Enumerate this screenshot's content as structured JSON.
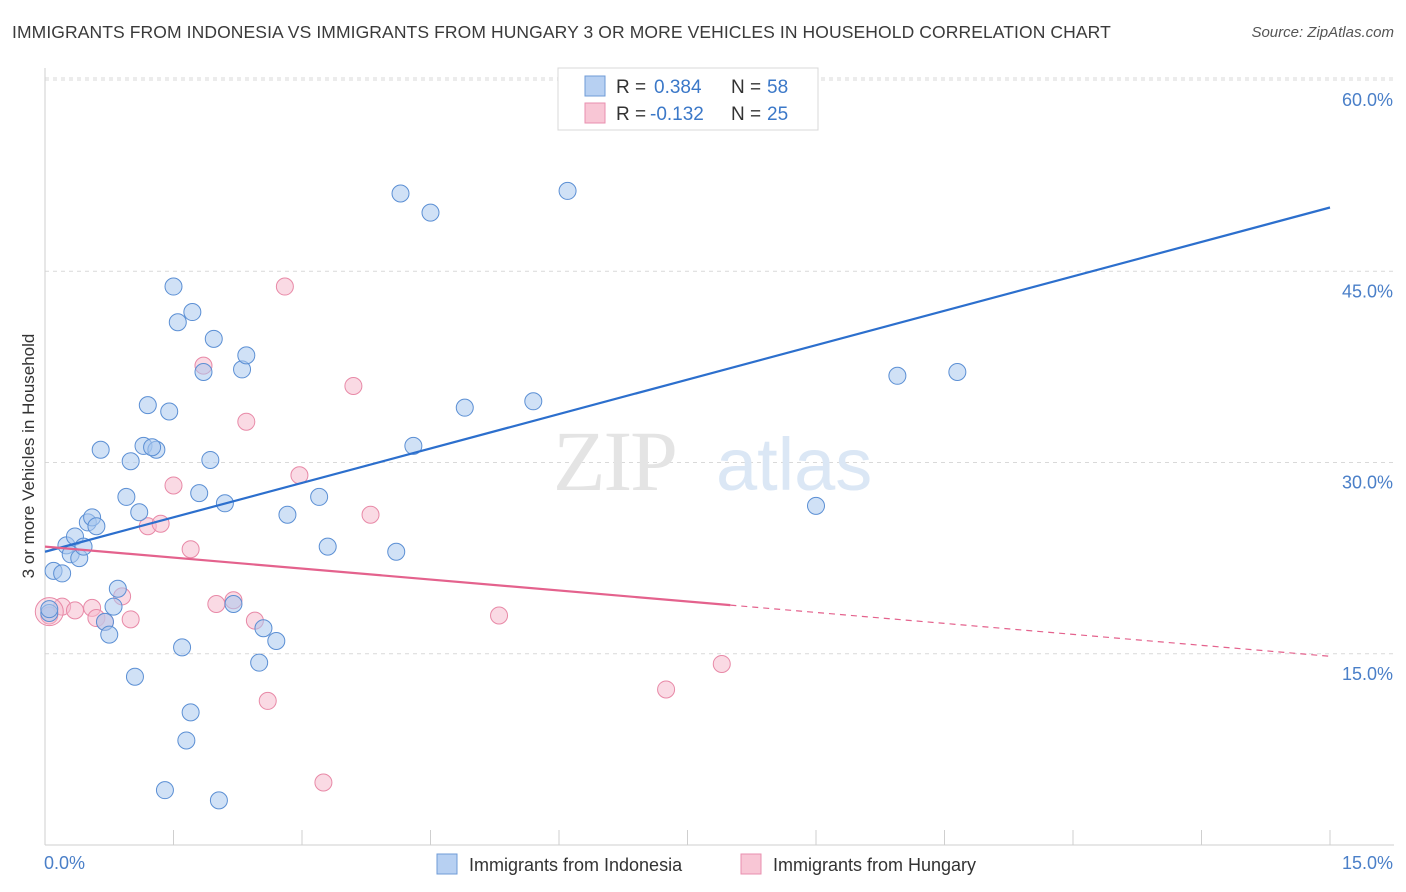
{
  "title": "IMMIGRANTS FROM INDONESIA VS IMMIGRANTS FROM HUNGARY 3 OR MORE VEHICLES IN HOUSEHOLD CORRELATION CHART",
  "source": "Source: ZipAtlas.com",
  "watermark": {
    "zip": "ZIP",
    "atlas": "atlas"
  },
  "legend": {
    "r_label": "R =",
    "n_label": "N =",
    "rows": [
      {
        "r": "0.384",
        "n": "58"
      },
      {
        "r": "-0.132",
        "n": "25"
      }
    ]
  },
  "colors": {
    "blue_fill": "#a9c8ef",
    "blue_stroke": "#5b8fd4",
    "blue_line": "#2c6fcd",
    "pink_fill": "#f6bccd",
    "pink_stroke": "#e889a7",
    "pink_line": "#e4628d",
    "grid": "#d9d9d9",
    "axis_text": "#4a7fc8"
  },
  "chart_data": {
    "type": "scatter",
    "title": "IMMIGRANTS FROM INDONESIA VS IMMIGRANTS FROM HUNGARY 3 OR MORE VEHICLES IN HOUSEHOLD CORRELATION CHART",
    "xlabel": "",
    "ylabel": "3 or more Vehicles in Household",
    "xlim": [
      0,
      15
    ],
    "ylim": [
      0,
      62
    ],
    "x_tick_labels": [
      "0.0%",
      "15.0%"
    ],
    "y_ticks": [
      15,
      30,
      45,
      60
    ],
    "y_tick_labels": [
      "15.0%",
      "30.0%",
      "45.0%",
      "60.0%"
    ],
    "grid": true,
    "series": [
      {
        "name": "Immigrants from Indonesia",
        "color": "#a9c8ef",
        "trend": {
          "x": [
            0,
            15
          ],
          "y": [
            23.0,
            50.0
          ],
          "dashed_from_x": null
        },
        "points": [
          [
            0.05,
            18.2
          ],
          [
            0.1,
            21.5
          ],
          [
            0.2,
            21.3
          ],
          [
            0.25,
            23.5
          ],
          [
            0.3,
            22.8
          ],
          [
            0.35,
            24.2
          ],
          [
            0.4,
            22.5
          ],
          [
            0.45,
            23.4
          ],
          [
            0.5,
            25.3
          ],
          [
            0.55,
            25.7
          ],
          [
            0.6,
            25.0
          ],
          [
            0.65,
            31.0
          ],
          [
            0.7,
            17.5
          ],
          [
            0.75,
            16.5
          ],
          [
            0.8,
            18.7
          ],
          [
            0.85,
            20.1
          ],
          [
            0.95,
            27.3
          ],
          [
            1.0,
            30.1
          ],
          [
            1.05,
            13.2
          ],
          [
            1.1,
            26.1
          ],
          [
            1.15,
            31.3
          ],
          [
            1.2,
            34.5
          ],
          [
            1.3,
            31.0
          ],
          [
            1.4,
            4.3
          ],
          [
            1.45,
            34.0
          ],
          [
            1.5,
            43.8
          ],
          [
            1.55,
            41.0
          ],
          [
            1.6,
            15.5
          ],
          [
            1.65,
            8.2
          ],
          [
            1.7,
            10.4
          ],
          [
            1.72,
            41.8
          ],
          [
            1.8,
            27.6
          ],
          [
            1.85,
            37.1
          ],
          [
            1.93,
            30.2
          ],
          [
            1.97,
            39.7
          ],
          [
            2.03,
            3.5
          ],
          [
            2.1,
            26.8
          ],
          [
            2.2,
            18.9
          ],
          [
            2.3,
            37.3
          ],
          [
            2.35,
            38.4
          ],
          [
            2.5,
            14.3
          ],
          [
            2.55,
            17.0
          ],
          [
            2.7,
            16.0
          ],
          [
            2.83,
            25.9
          ],
          [
            3.2,
            27.3
          ],
          [
            3.3,
            23.4
          ],
          [
            4.1,
            23.0
          ],
          [
            4.15,
            51.1
          ],
          [
            4.3,
            31.3
          ],
          [
            4.5,
            49.6
          ],
          [
            4.9,
            34.3
          ],
          [
            5.7,
            34.8
          ],
          [
            6.1,
            51.3
          ],
          [
            9.0,
            26.6
          ],
          [
            9.95,
            36.8
          ],
          [
            10.65,
            37.1
          ],
          [
            0.05,
            18.5
          ],
          [
            1.25,
            31.2
          ]
        ]
      },
      {
        "name": "Immigrants from Hungary",
        "color": "#f6bccd",
        "trend": {
          "x": [
            0,
            15
          ],
          "y": [
            23.4,
            14.8
          ],
          "dashed_from_x": 8.0
        },
        "points": [
          [
            0.05,
            18.0
          ],
          [
            0.2,
            18.7
          ],
          [
            0.35,
            18.4
          ],
          [
            0.55,
            18.6
          ],
          [
            0.6,
            17.8
          ],
          [
            0.7,
            17.5
          ],
          [
            0.9,
            19.5
          ],
          [
            1.0,
            17.7
          ],
          [
            1.2,
            25.0
          ],
          [
            1.35,
            25.2
          ],
          [
            1.5,
            28.2
          ],
          [
            1.7,
            23.2
          ],
          [
            1.85,
            37.6
          ],
          [
            2.0,
            18.9
          ],
          [
            2.2,
            19.2
          ],
          [
            2.35,
            33.2
          ],
          [
            2.45,
            17.6
          ],
          [
            2.6,
            11.3
          ],
          [
            2.8,
            43.8
          ],
          [
            2.97,
            29.0
          ],
          [
            3.25,
            4.9
          ],
          [
            3.6,
            36.0
          ],
          [
            3.8,
            25.9
          ],
          [
            5.3,
            18.0
          ],
          [
            7.25,
            12.2
          ]
        ]
      }
    ],
    "extra_pink_point": [
      7.9,
      14.2
    ]
  },
  "bottom_legend": [
    "Immigrants from Indonesia",
    "Immigrants from Hungary"
  ]
}
